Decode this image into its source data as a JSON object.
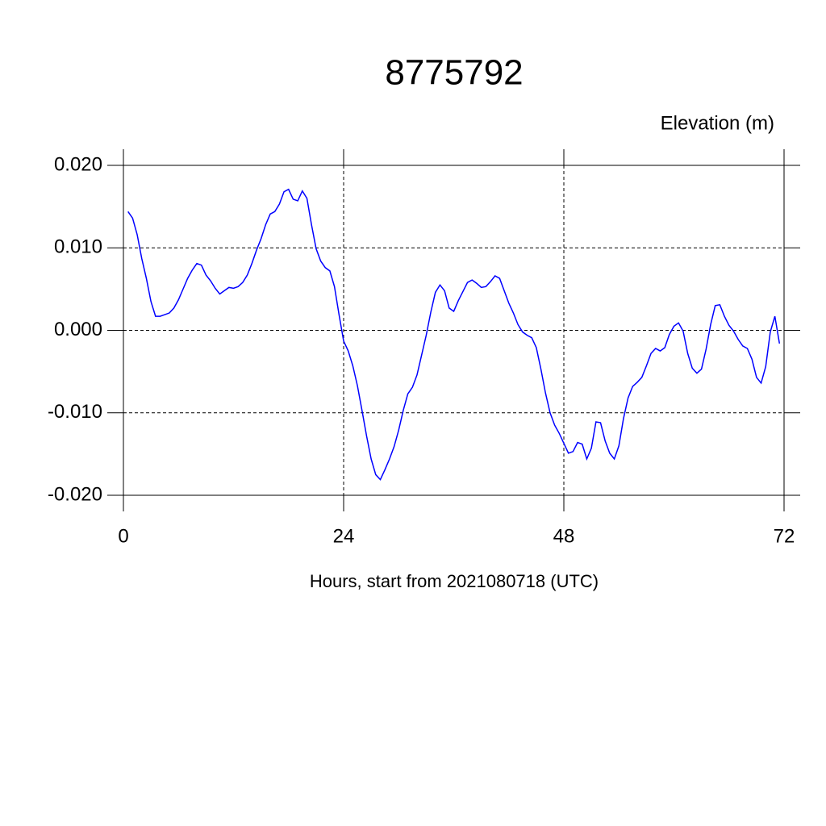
{
  "chart_data": {
    "type": "line",
    "title": "8775792",
    "subtitle": "Elevation (m)",
    "x_label": "Hours, start from 2021080718 (UTC)",
    "x": [
      0.5,
      1,
      1.5,
      2,
      2.5,
      3,
      3.5,
      4,
      4.5,
      5,
      5.5,
      6,
      6.5,
      7,
      7.5,
      8,
      8.5,
      9,
      9.5,
      10,
      10.5,
      11,
      11.5,
      12,
      12.5,
      13,
      13.5,
      14,
      14.5,
      15,
      15.5,
      16,
      16.5,
      17,
      17.5,
      18,
      18.5,
      19,
      19.5,
      20,
      20.5,
      21,
      21.5,
      22,
      22.5,
      23,
      23.5,
      24,
      24.5,
      25,
      25.5,
      26,
      26.5,
      27,
      27.5,
      28,
      28.5,
      29,
      29.5,
      30,
      30.5,
      31,
      31.5,
      32,
      32.5,
      33,
      33.5,
      34,
      34.5,
      35,
      35.5,
      36,
      36.5,
      37,
      37.5,
      38,
      38.5,
      39,
      39.5,
      40,
      40.5,
      41,
      41.5,
      42,
      42.5,
      43,
      43.5,
      44,
      44.5,
      45,
      45.5,
      46,
      46.5,
      47,
      47.5,
      48,
      48.5,
      49,
      49.5,
      50,
      50.5,
      51,
      51.5,
      52,
      52.5,
      53,
      53.5,
      54,
      54.5,
      55,
      55.5,
      56,
      56.5,
      57,
      57.5,
      58,
      58.5,
      59,
      59.5,
      60,
      60.5,
      61,
      61.5,
      62,
      62.5,
      63,
      63.5,
      64,
      64.5,
      65,
      65.5,
      66,
      66.5,
      67,
      67.5,
      68,
      68.5,
      69,
      69.5,
      70,
      70.5,
      71,
      71.5
    ],
    "series": [
      {
        "name": "Elevation",
        "color": "#0000ff",
        "values": [
          0.0144,
          0.0136,
          0.0116,
          0.0087,
          0.0063,
          0.0035,
          0.0017,
          0.0017,
          0.0019,
          0.0021,
          0.0027,
          0.0037,
          0.005,
          0.0063,
          0.0073,
          0.0081,
          0.0079,
          0.0067,
          0.006,
          0.0051,
          0.0044,
          0.0048,
          0.0052,
          0.0051,
          0.0053,
          0.0058,
          0.0067,
          0.0081,
          0.0097,
          0.0111,
          0.0128,
          0.0141,
          0.0144,
          0.0153,
          0.0168,
          0.0171,
          0.0159,
          0.0157,
          0.0169,
          0.016,
          0.0128,
          0.0099,
          0.0084,
          0.0076,
          0.0072,
          0.0053,
          0.0019,
          -0.0013,
          -0.0025,
          -0.0043,
          -0.0067,
          -0.0097,
          -0.0128,
          -0.0156,
          -0.0175,
          -0.0181,
          -0.0169,
          -0.0156,
          -0.0141,
          -0.0121,
          -0.0097,
          -0.0077,
          -0.0069,
          -0.0054,
          -0.003,
          -0.0006,
          0.0022,
          0.0046,
          0.0055,
          0.0048,
          0.0027,
          0.0023,
          0.0036,
          0.0047,
          0.0058,
          0.0061,
          0.0057,
          0.0052,
          0.0053,
          0.0059,
          0.0066,
          0.0063,
          0.0048,
          0.0033,
          0.0021,
          0.0007,
          -0.0002,
          -0.0006,
          -0.0009,
          -0.0021,
          -0.0047,
          -0.0076,
          -0.01,
          -0.0115,
          -0.0125,
          -0.0137,
          -0.0149,
          -0.0147,
          -0.0136,
          -0.0138,
          -0.0156,
          -0.0143,
          -0.0111,
          -0.0112,
          -0.0134,
          -0.0149,
          -0.0156,
          -0.014,
          -0.0107,
          -0.0082,
          -0.0068,
          -0.0063,
          -0.0057,
          -0.0043,
          -0.0028,
          -0.0022,
          -0.0025,
          -0.0021,
          -0.0005,
          0.0005,
          0.0009,
          -0.0001,
          -0.0028,
          -0.0046,
          -0.0052,
          -0.0047,
          -0.0023,
          0.0007,
          0.003,
          0.0031,
          0.0017,
          0.0006,
          -0.0001,
          -0.0011,
          -0.0019,
          -0.0022,
          -0.0035,
          -0.0057,
          -0.0064,
          -0.0044,
          -0.0002,
          0.0017,
          -0.0016
        ]
      }
    ],
    "xlim": [
      0,
      72
    ],
    "xticks": [
      0,
      24,
      48,
      72
    ],
    "ylim": [
      -0.02,
      0.02
    ],
    "yticks": [
      {
        "value": -0.02,
        "label": "-0.020"
      },
      {
        "value": -0.01,
        "label": "-0.010"
      },
      {
        "value": 0,
        "label": "0.000"
      },
      {
        "value": 0.01,
        "label": "0.010"
      },
      {
        "value": 0.02,
        "label": "0.020"
      }
    ],
    "grid": true
  }
}
